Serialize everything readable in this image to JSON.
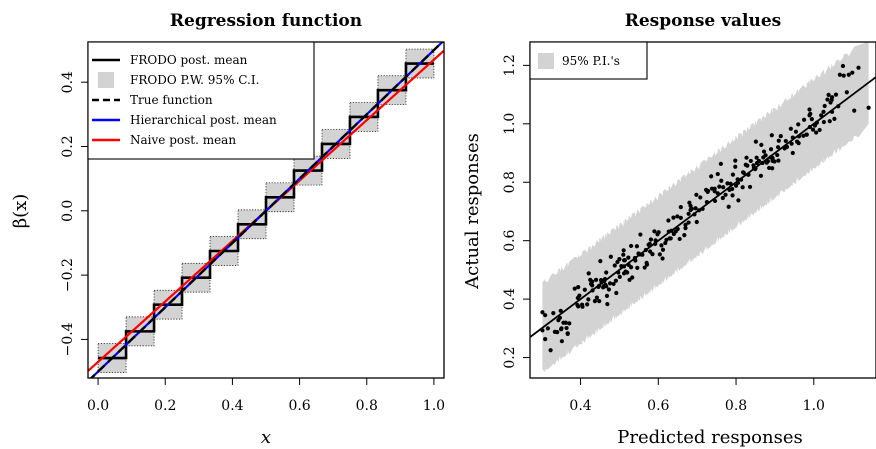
{
  "chart_data": [
    {
      "type": "line",
      "title": "Regression function",
      "xlabel": "x",
      "ylabel": "β(x)",
      "xlim": [
        -0.03,
        1.03
      ],
      "ylim": [
        -0.52,
        0.525
      ],
      "xticks": [
        0.0,
        0.2,
        0.4,
        0.6,
        0.8,
        1.0
      ],
      "xtick_labels": [
        "0.0",
        "0.2",
        "0.4",
        "0.6",
        "0.8",
        "1.0"
      ],
      "yticks": [
        -0.4,
        -0.2,
        0.0,
        0.2,
        0.4
      ],
      "ytick_labels": [
        "−0.4",
        "−0.2",
        "0.0",
        "0.2",
        "0.4"
      ],
      "grid": false,
      "legend_position": "top-left",
      "legend": [
        {
          "label": "FRODO post. mean",
          "style": "line",
          "color": "#000000"
        },
        {
          "label": "FRODO P.W. 95% C.I.",
          "style": "box",
          "color": "#d3d3d3"
        },
        {
          "label": "True function",
          "style": "dashed",
          "color": "#000000"
        },
        {
          "label": "Hierarchical post. mean",
          "style": "line",
          "color": "#0000ff"
        },
        {
          "label": "Naive post. mean",
          "style": "line",
          "color": "#ff0000"
        }
      ],
      "frodo_steps": {
        "breaks": [
          0,
          0.0833,
          0.1667,
          0.25,
          0.3333,
          0.4167,
          0.5,
          0.5833,
          0.6667,
          0.75,
          0.8333,
          0.9167,
          1.0
        ],
        "means": [
          -0.458,
          -0.375,
          -0.292,
          -0.208,
          -0.125,
          -0.042,
          0.042,
          0.125,
          0.208,
          0.292,
          0.375,
          0.458
        ],
        "ci_halfwidth": 0.045
      },
      "true_function": {
        "intercept": -0.5,
        "slope": 1.0
      },
      "hierarchical_mean": {
        "intercept": -0.5,
        "slope": 1.0
      },
      "naive_mean": {
        "intercept": -0.47,
        "slope": 0.94
      }
    },
    {
      "type": "scatter",
      "title": "Response values",
      "xlabel": "Predicted responses",
      "ylabel": "Actual responses",
      "xlim": [
        0.27,
        1.16
      ],
      "ylim": [
        0.13,
        1.28
      ],
      "xticks": [
        0.4,
        0.6,
        0.8,
        1.0
      ],
      "xtick_labels": [
        "0.4",
        "0.6",
        "0.8",
        "1.0"
      ],
      "yticks": [
        0.2,
        0.4,
        0.6,
        0.8,
        1.0,
        1.2
      ],
      "ytick_labels": [
        "0.2",
        "0.4",
        "0.6",
        "0.8",
        "1.0",
        "1.2"
      ],
      "grid": false,
      "legend_position": "top-left",
      "legend": [
        {
          "label": "95% P.I.'s",
          "style": "box",
          "color": "#d3d3d3"
        }
      ],
      "fit_line": {
        "intercept": 0.0,
        "slope": 1.0
      },
      "prediction_band_halfwidth": 0.15,
      "points": [
        [
          0.302,
          0.293
        ],
        [
          0.302,
          0.355
        ],
        [
          0.309,
          0.263
        ],
        [
          0.309,
          0.345
        ],
        [
          0.316,
          0.3
        ],
        [
          0.323,
          0.225
        ],
        [
          0.33,
          0.352
        ],
        [
          0.334,
          0.288
        ],
        [
          0.34,
          0.287
        ],
        [
          0.343,
          0.328
        ],
        [
          0.347,
          0.336
        ],
        [
          0.349,
          0.36
        ],
        [
          0.35,
          0.297
        ],
        [
          0.351,
          0.3
        ],
        [
          0.352,
          0.256
        ],
        [
          0.356,
          0.319
        ],
        [
          0.362,
          0.319
        ],
        [
          0.364,
          0.301
        ],
        [
          0.367,
          0.281
        ],
        [
          0.367,
          0.283
        ],
        [
          0.371,
          0.317
        ],
        [
          0.385,
          0.436
        ],
        [
          0.392,
          0.38
        ],
        [
          0.393,
          0.404
        ],
        [
          0.394,
          0.375
        ],
        [
          0.394,
          0.441
        ],
        [
          0.397,
          0.412
        ],
        [
          0.404,
          0.381
        ],
        [
          0.405,
          0.374
        ],
        [
          0.411,
          0.432
        ],
        [
          0.417,
          0.382
        ],
        [
          0.42,
          0.399
        ],
        [
          0.421,
          0.488
        ],
        [
          0.425,
          0.466
        ],
        [
          0.427,
          0.452
        ],
        [
          0.43,
          0.447
        ],
        [
          0.43,
          0.46
        ],
        [
          0.431,
          0.43
        ],
        [
          0.437,
          0.393
        ],
        [
          0.44,
          0.466
        ],
        [
          0.442,
          0.405
        ],
        [
          0.446,
          0.442
        ],
        [
          0.448,
          0.393
        ],
        [
          0.448,
          0.446
        ],
        [
          0.451,
          0.53
        ],
        [
          0.453,
          0.465
        ],
        [
          0.454,
          0.458
        ],
        [
          0.458,
          0.44
        ],
        [
          0.46,
          0.445
        ],
        [
          0.461,
          0.462
        ],
        [
          0.463,
          0.469
        ],
        [
          0.464,
          0.449
        ],
        [
          0.466,
          0.444
        ],
        [
          0.466,
          0.491
        ],
        [
          0.468,
          0.411
        ],
        [
          0.469,
          0.383
        ],
        [
          0.473,
          0.433
        ],
        [
          0.476,
          0.454
        ],
        [
          0.478,
          0.545
        ],
        [
          0.485,
          0.452
        ],
        [
          0.488,
          0.515
        ],
        [
          0.491,
          0.463
        ],
        [
          0.492,
          0.421
        ],
        [
          0.495,
          0.527
        ],
        [
          0.497,
          0.491
        ],
        [
          0.5,
          0.537
        ],
        [
          0.501,
          0.476
        ],
        [
          0.505,
          0.513
        ],
        [
          0.51,
          0.552
        ],
        [
          0.511,
          0.567
        ],
        [
          0.512,
          0.488
        ],
        [
          0.512,
          0.512
        ],
        [
          0.512,
          0.533
        ],
        [
          0.514,
          0.533
        ],
        [
          0.516,
          0.494
        ],
        [
          0.52,
          0.491
        ],
        [
          0.523,
          0.542
        ],
        [
          0.524,
          0.517
        ],
        [
          0.526,
          0.466
        ],
        [
          0.53,
          0.509
        ],
        [
          0.53,
          0.582
        ],
        [
          0.533,
          0.474
        ],
        [
          0.54,
          0.541
        ],
        [
          0.541,
          0.532
        ],
        [
          0.545,
          0.581
        ],
        [
          0.546,
          0.507
        ],
        [
          0.549,
          0.556
        ],
        [
          0.553,
          0.553
        ],
        [
          0.554,
          0.621
        ],
        [
          0.559,
          0.552
        ],
        [
          0.565,
          0.508
        ],
        [
          0.568,
          0.568
        ],
        [
          0.57,
          0.524
        ],
        [
          0.571,
          0.518
        ],
        [
          0.575,
          0.586
        ],
        [
          0.578,
          0.589
        ],
        [
          0.579,
          0.563
        ],
        [
          0.581,
          0.604
        ],
        [
          0.585,
          0.554
        ],
        [
          0.59,
          0.632
        ],
        [
          0.592,
          0.589
        ],
        [
          0.593,
          0.601
        ],
        [
          0.598,
          0.622
        ],
        [
          0.601,
          0.629
        ],
        [
          0.604,
          0.553
        ],
        [
          0.608,
          0.584
        ],
        [
          0.611,
          0.539
        ],
        [
          0.612,
          0.569
        ],
        [
          0.618,
          0.592
        ],
        [
          0.621,
          0.603
        ],
        [
          0.626,
          0.669
        ],
        [
          0.627,
          0.631
        ],
        [
          0.629,
          0.608
        ],
        [
          0.632,
          0.608
        ],
        [
          0.634,
          0.634
        ],
        [
          0.639,
          0.679
        ],
        [
          0.64,
          0.623
        ],
        [
          0.645,
          0.632
        ],
        [
          0.649,
          0.683
        ],
        [
          0.65,
          0.64
        ],
        [
          0.655,
          0.606
        ],
        [
          0.658,
          0.678
        ],
        [
          0.658,
          0.715
        ],
        [
          0.667,
          0.619
        ],
        [
          0.67,
          0.643
        ],
        [
          0.67,
          0.654
        ],
        [
          0.678,
          0.662
        ],
        [
          0.678,
          0.692
        ],
        [
          0.68,
          0.73
        ],
        [
          0.683,
          0.705
        ],
        [
          0.683,
          0.719
        ],
        [
          0.686,
          0.709
        ],
        [
          0.693,
          0.69
        ],
        [
          0.696,
          0.711
        ],
        [
          0.698,
          0.757
        ],
        [
          0.699,
          0.664
        ],
        [
          0.705,
          0.704
        ],
        [
          0.708,
          0.748
        ],
        [
          0.714,
          0.709
        ],
        [
          0.723,
          0.774
        ],
        [
          0.725,
          0.732
        ],
        [
          0.727,
          0.767
        ],
        [
          0.728,
          0.77
        ],
        [
          0.736,
          0.82
        ],
        [
          0.738,
          0.778
        ],
        [
          0.745,
          0.769
        ],
        [
          0.745,
          0.778
        ],
        [
          0.746,
          0.736
        ],
        [
          0.753,
          0.762
        ],
        [
          0.753,
          0.828
        ],
        [
          0.757,
          0.785
        ],
        [
          0.761,
          0.863
        ],
        [
          0.762,
          0.805
        ],
        [
          0.766,
          0.746
        ],
        [
          0.767,
          0.783
        ],
        [
          0.773,
          0.757
        ],
        [
          0.778,
          0.796
        ],
        [
          0.781,
          0.716
        ],
        [
          0.783,
          0.774
        ],
        [
          0.786,
          0.795
        ],
        [
          0.79,
          0.777
        ],
        [
          0.791,
          0.755
        ],
        [
          0.792,
          0.826
        ],
        [
          0.798,
          0.853
        ],
        [
          0.798,
          0.874
        ],
        [
          0.8,
          0.788
        ],
        [
          0.804,
          0.81
        ],
        [
          0.805,
          0.798
        ],
        [
          0.806,
          0.738
        ],
        [
          0.813,
          0.809
        ],
        [
          0.817,
          0.783
        ],
        [
          0.818,
          0.834
        ],
        [
          0.82,
          0.832
        ],
        [
          0.825,
          0.86
        ],
        [
          0.827,
          0.884
        ],
        [
          0.829,
          0.857
        ],
        [
          0.831,
          0.826
        ],
        [
          0.832,
          0.826
        ],
        [
          0.836,
          0.784
        ],
        [
          0.838,
          0.873
        ],
        [
          0.845,
          0.858
        ],
        [
          0.846,
          0.849
        ],
        [
          0.849,
          0.845
        ],
        [
          0.85,
          0.847
        ],
        [
          0.851,
          0.939
        ],
        [
          0.853,
          0.884
        ],
        [
          0.854,
          0.866
        ],
        [
          0.859,
          0.873
        ],
        [
          0.864,
          0.822
        ],
        [
          0.865,
          0.928
        ],
        [
          0.868,
          0.866
        ],
        [
          0.87,
          0.885
        ],
        [
          0.872,
          0.905
        ],
        [
          0.876,
          0.892
        ],
        [
          0.879,
          0.867
        ],
        [
          0.882,
          0.872
        ],
        [
          0.885,
          0.849
        ],
        [
          0.889,
          0.885
        ],
        [
          0.89,
          0.913
        ],
        [
          0.892,
          0.961
        ],
        [
          0.893,
          0.848
        ],
        [
          0.894,
          0.873
        ],
        [
          0.894,
          0.883
        ],
        [
          0.899,
          0.871
        ],
        [
          0.906,
          0.893
        ],
        [
          0.908,
          0.92
        ],
        [
          0.909,
          0.874
        ],
        [
          0.91,
          0.942
        ],
        [
          0.915,
          0.958
        ],
        [
          0.925,
          0.916
        ],
        [
          0.928,
          0.941
        ],
        [
          0.931,
          0.921
        ],
        [
          0.941,
          0.983
        ],
        [
          0.943,
          0.932
        ],
        [
          0.946,
          0.9
        ],
        [
          0.946,
          0.953
        ],
        [
          0.954,
          0.973
        ],
        [
          0.957,
          0.939
        ],
        [
          0.96,
          0.998
        ],
        [
          0.961,
          0.934
        ],
        [
          0.962,
          0.957
        ],
        [
          0.973,
          0.959
        ],
        [
          0.975,
          1.014
        ],
        [
          0.981,
          0.963
        ],
        [
          0.982,
          0.963
        ],
        [
          0.989,
          1.029
        ],
        [
          0.989,
          1.049
        ],
        [
          0.99,
          0.989
        ],
        [
          0.991,
          1.034
        ],
        [
          0.995,
          1.016
        ],
        [
          0.998,
          0.98
        ],
        [
          1.003,
          0.994
        ],
        [
          1.006,
          0.97
        ],
        [
          1.008,
          1.004
        ],
        [
          1.015,
          0.979
        ],
        [
          1.019,
          1.029
        ],
        [
          1.025,
          1.041
        ],
        [
          1.026,
          1.006
        ],
        [
          1.028,
          1.061
        ],
        [
          1.035,
          1.083
        ],
        [
          1.038,
          1.099
        ],
        [
          1.041,
          1.009
        ],
        [
          1.043,
          1.073
        ],
        [
          1.046,
          1.082
        ],
        [
          1.047,
          1.041
        ],
        [
          1.047,
          1.091
        ],
        [
          1.053,
          1.017
        ],
        [
          1.057,
          1.1
        ],
        [
          1.063,
          1.06
        ],
        [
          1.067,
          1.168
        ],
        [
          1.075,
          1.198
        ],
        [
          1.077,
          1.165
        ],
        [
          1.085,
          1.108
        ],
        [
          1.09,
          1.168
        ],
        [
          1.099,
          1.175
        ],
        [
          1.104,
          1.045
        ],
        [
          1.115,
          1.192
        ],
        [
          1.141,
          1.055
        ]
      ]
    }
  ]
}
